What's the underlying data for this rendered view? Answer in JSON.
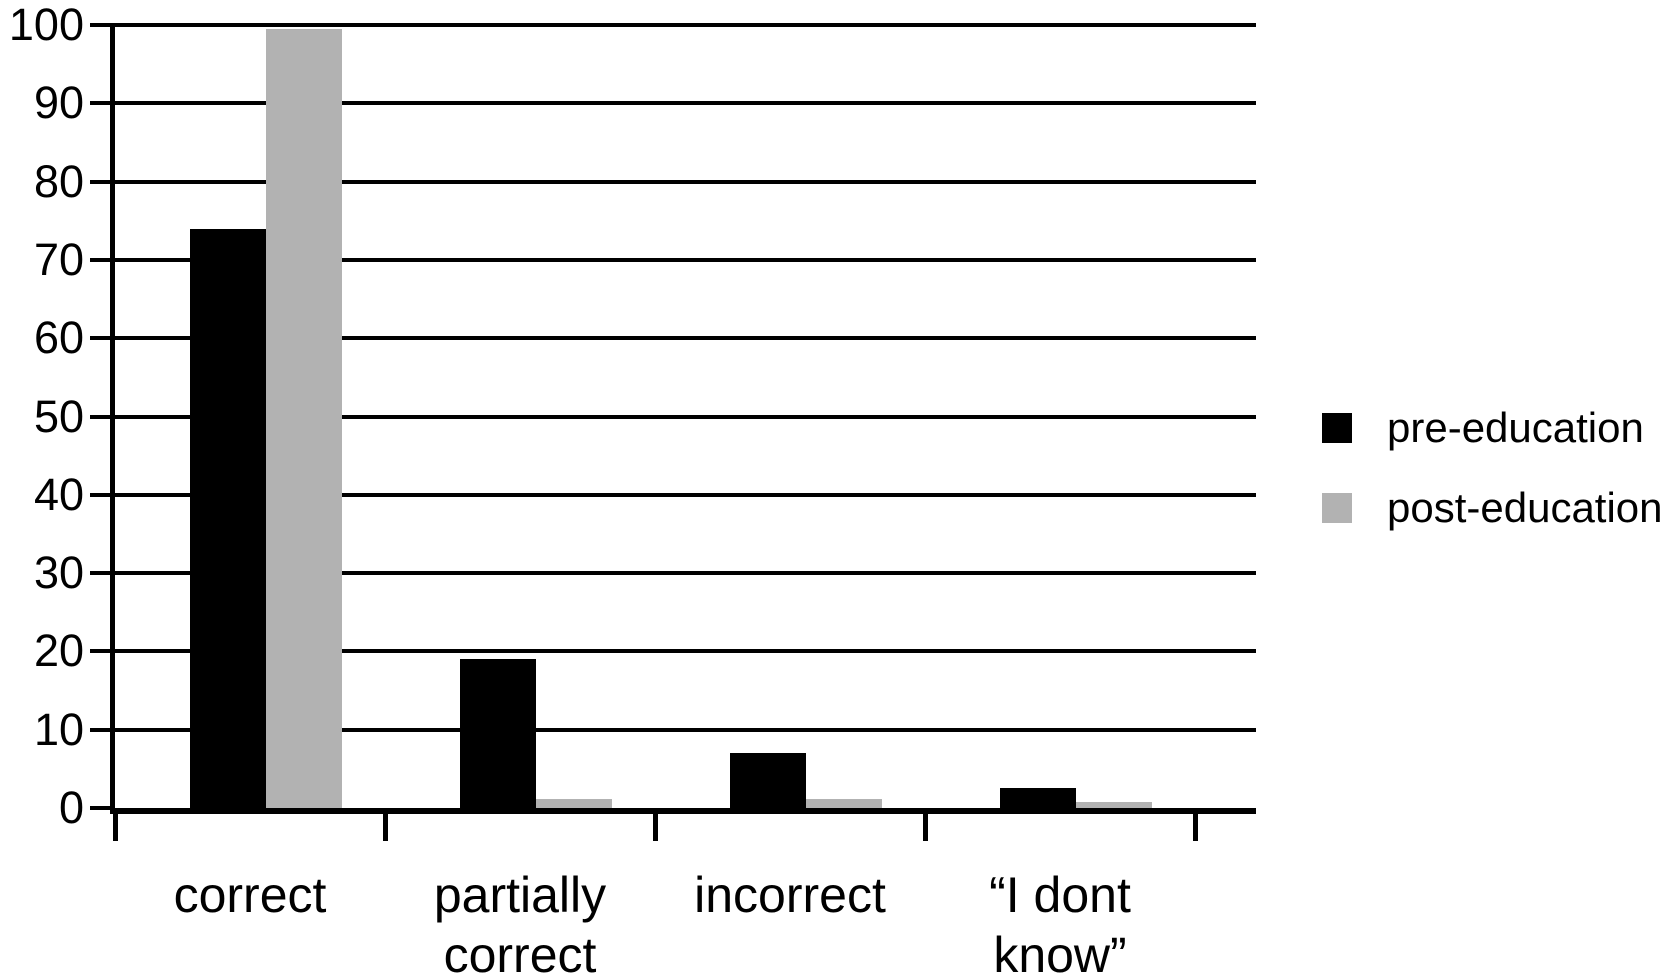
{
  "chart_data": {
    "type": "bar",
    "title": "",
    "xlabel": "",
    "ylabel": "",
    "categories": [
      "correct",
      "partially correct",
      "incorrect",
      "“I dont know”"
    ],
    "series": [
      {
        "name": "pre-education",
        "color": "#000000",
        "values": [
          74,
          19,
          7,
          2.5
        ]
      },
      {
        "name": "post-education",
        "color": "#b2b2b2",
        "values": [
          99.5,
          1.2,
          1.2,
          0.8
        ]
      }
    ],
    "ylim": [
      0,
      100
    ],
    "yticks": [
      0,
      10,
      20,
      30,
      40,
      50,
      60,
      70,
      80,
      90,
      100
    ],
    "grid": "horizontal",
    "legend_position": "right",
    "axis_color": "#000000",
    "background": "#ffffff"
  }
}
